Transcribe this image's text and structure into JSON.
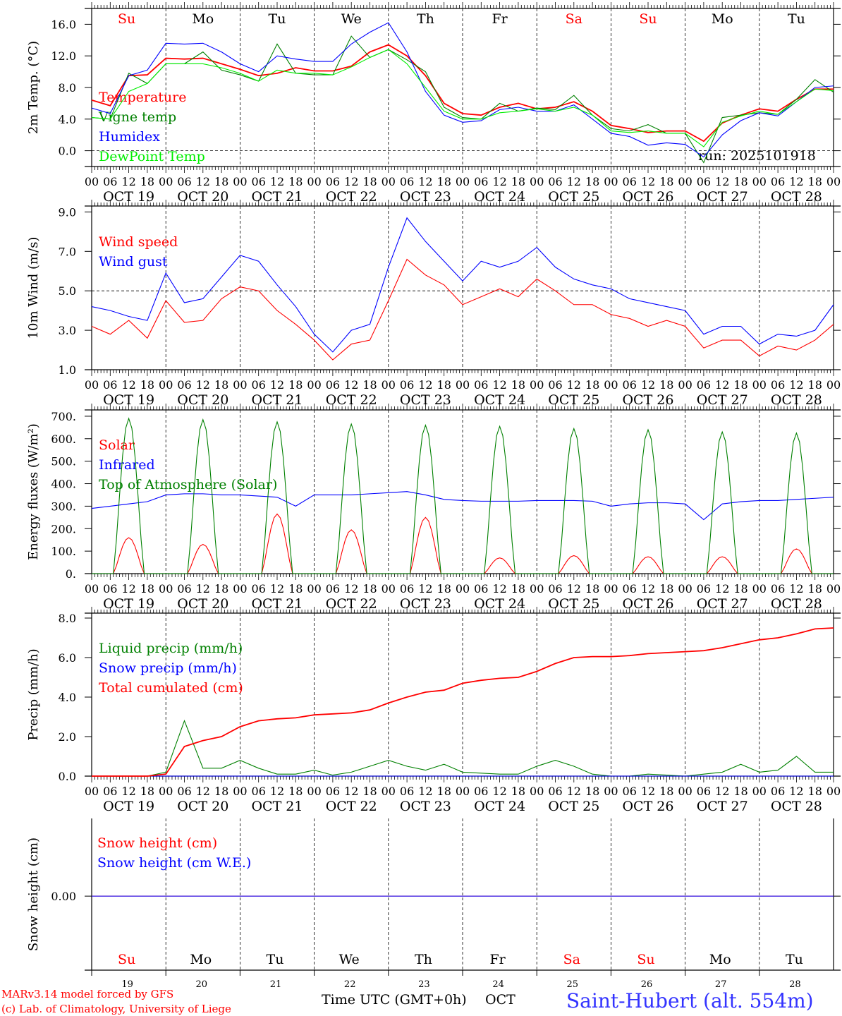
{
  "chart_data": [
    {
      "type": "line",
      "id": "temp",
      "ylabel": "2m Temp. (°C)",
      "ylim": [
        -2,
        18
      ],
      "yticks": [
        "16.0",
        "12.0",
        "8.0",
        "4.0",
        "0.0"
      ],
      "ytick_values": [
        16,
        12,
        8,
        4,
        0
      ],
      "ref_line": 0,
      "x_step_hours": 6,
      "annotation": "run: 2025101918",
      "series": [
        {
          "name": "Temperature",
          "color": "#ff0000",
          "values": [
            6.4,
            5.7,
            9.5,
            9.6,
            11.7,
            11.6,
            11.7,
            11.0,
            10.3,
            9.5,
            9.8,
            10.5,
            10.1,
            10.1,
            10.7,
            12.5,
            13.4,
            12.0,
            9.5,
            6.0,
            4.7,
            4.5,
            5.5,
            6.0,
            5.3,
            5.5,
            6.2,
            5.0,
            3.2,
            2.8,
            2.3,
            2.5,
            2.5,
            1.2,
            3.5,
            4.5,
            5.3,
            5.0,
            6.5,
            7.8,
            7.8
          ]
        },
        {
          "name": "Vigne temp",
          "color": "#008000",
          "values": [
            4.2,
            4.0,
            9.8,
            8.5,
            11.0,
            11.0,
            12.5,
            10.2,
            9.6,
            8.8,
            13.5,
            9.8,
            9.6,
            9.6,
            14.5,
            11.8,
            12.8,
            11.5,
            10.0,
            5.5,
            4.2,
            4.0,
            6.0,
            5.0,
            5.4,
            5.2,
            7.0,
            4.5,
            2.8,
            2.5,
            3.3,
            2.2,
            2.2,
            -1.5,
            4.2,
            4.5,
            4.8,
            4.6,
            6.5,
            9.0,
            7.4
          ]
        },
        {
          "name": "Humidex",
          "color": "#0000ff",
          "values": [
            5.4,
            4.7,
            9.5,
            10.2,
            13.6,
            13.5,
            13.6,
            12.5,
            11.0,
            10.0,
            12.0,
            11.6,
            11.3,
            11.3,
            13.5,
            15.0,
            16.2,
            12.5,
            7.5,
            4.5,
            3.6,
            3.8,
            5.2,
            5.5,
            5.0,
            5.0,
            5.8,
            4.0,
            2.2,
            1.8,
            0.7,
            1.0,
            0.8,
            -0.8,
            2.0,
            3.8,
            4.8,
            4.4,
            6.2,
            8.0,
            8.2
          ]
        },
        {
          "name": "DewPoint Temp",
          "color": "#00ee00",
          "values": [
            4.2,
            4.0,
            7.5,
            8.5,
            11.0,
            11.0,
            11.0,
            10.5,
            9.8,
            8.8,
            10.2,
            9.8,
            9.8,
            9.6,
            10.6,
            11.8,
            12.8,
            11.0,
            8.0,
            5.0,
            4.0,
            4.0,
            4.8,
            5.0,
            5.3,
            5.0,
            5.5,
            4.5,
            2.5,
            2.3,
            2.5,
            2.2,
            2.2,
            0.5,
            3.6,
            4.4,
            5.0,
            4.6,
            6.2,
            7.8,
            7.6
          ]
        }
      ]
    },
    {
      "type": "line",
      "id": "wind",
      "ylabel": "10m Wind (m/s)",
      "ylim": [
        1,
        9.3
      ],
      "yticks": [
        "9.0",
        "7.0",
        "5.0",
        "3.0",
        "1.0"
      ],
      "ytick_values": [
        9,
        7,
        5,
        3,
        1
      ],
      "ref_line": 5,
      "x_step_hours": 6,
      "series": [
        {
          "name": "Wind speed",
          "color": "#ff0000",
          "values": [
            3.2,
            2.8,
            3.5,
            2.6,
            4.5,
            3.4,
            3.5,
            4.6,
            5.2,
            5.0,
            4.0,
            3.3,
            2.5,
            1.5,
            2.3,
            2.5,
            4.5,
            6.6,
            5.8,
            5.3,
            4.3,
            4.7,
            5.1,
            4.7,
            5.6,
            5.0,
            4.3,
            4.3,
            3.8,
            3.6,
            3.2,
            3.5,
            3.2,
            2.1,
            2.5,
            2.5,
            1.7,
            2.2,
            2.0,
            2.5,
            3.3
          ]
        },
        {
          "name": "Wind gust",
          "color": "#0000ff",
          "values": [
            4.2,
            4.0,
            3.7,
            3.5,
            5.9,
            4.4,
            4.6,
            5.7,
            6.8,
            6.5,
            5.3,
            4.2,
            2.8,
            1.9,
            3.0,
            3.3,
            6.2,
            8.7,
            7.5,
            6.5,
            5.5,
            6.5,
            6.2,
            6.5,
            7.2,
            6.2,
            5.6,
            5.3,
            5.1,
            4.6,
            4.4,
            4.2,
            4.0,
            2.8,
            3.2,
            3.2,
            2.3,
            2.8,
            2.7,
            3.0,
            4.3
          ]
        }
      ]
    },
    {
      "type": "line",
      "id": "energy",
      "ylabel": "Energy fluxes (W/m²)",
      "ylim": [
        0,
        728
      ],
      "yticks": [
        "700.",
        "600.",
        "500.",
        "400.",
        "300.",
        "200.",
        "100.",
        "0."
      ],
      "ytick_values": [
        700,
        600,
        500,
        400,
        300,
        200,
        100,
        0
      ],
      "x_step_hours": 6,
      "daylight_hours": [
        7,
        17
      ],
      "series": [
        {
          "name": "Solar",
          "color": "#ff0000",
          "daily_peak": [
            160,
            130,
            265,
            195,
            250,
            70,
            80,
            75,
            75,
            110
          ]
        },
        {
          "name": "Infrared",
          "color": "#0000ff",
          "values": [
            290,
            300,
            310,
            320,
            350,
            355,
            355,
            350,
            350,
            345,
            340,
            300,
            350,
            350,
            350,
            355,
            360,
            365,
            350,
            330,
            325,
            322,
            322,
            322,
            325,
            325,
            325,
            322,
            300,
            310,
            315,
            315,
            310,
            240,
            310,
            320,
            325,
            325,
            330,
            335,
            340
          ]
        },
        {
          "name": "Top of Atmosphere (Solar)",
          "color": "#008000",
          "daily_peak": [
            690,
            685,
            675,
            665,
            660,
            655,
            645,
            640,
            630,
            625
          ]
        }
      ]
    },
    {
      "type": "line",
      "id": "precip",
      "ylabel": "Precip (mm/h)",
      "ylim": [
        0,
        8.25
      ],
      "yticks": [
        "8.0",
        "6.0",
        "4.0",
        "2.0",
        "0.0"
      ],
      "ytick_values": [
        8,
        6,
        4,
        2,
        0
      ],
      "x_step_hours": 6,
      "series": [
        {
          "name": "Liquid precip (mm/h)",
          "color": "#008000",
          "values": [
            0,
            0,
            0,
            0,
            0.2,
            2.8,
            0.4,
            0.4,
            0.8,
            0.4,
            0.1,
            0.1,
            0.3,
            0.05,
            0.2,
            0.5,
            0.8,
            0.5,
            0.3,
            0.6,
            0.2,
            0.15,
            0.1,
            0.1,
            0.5,
            0.8,
            0.5,
            0.1,
            0,
            0,
            0.1,
            0.05,
            0,
            0.1,
            0.2,
            0.6,
            0.2,
            0.3,
            1.0,
            0.2,
            0.2
          ]
        },
        {
          "name": "Snow precip (mm/h)",
          "color": "#0000ff",
          "values": [
            0,
            0,
            0,
            0,
            0,
            0,
            0,
            0,
            0,
            0,
            0,
            0,
            0,
            0,
            0,
            0,
            0,
            0,
            0,
            0,
            0,
            0,
            0,
            0,
            0,
            0,
            0,
            0,
            0,
            0,
            0,
            0,
            0,
            0,
            0,
            0,
            0,
            0,
            0,
            0,
            0
          ]
        },
        {
          "name": "Total cumulated (cm)",
          "color": "#ff0000",
          "values": [
            0,
            0,
            0,
            0,
            0.1,
            1.5,
            1.8,
            2.0,
            2.5,
            2.8,
            2.9,
            2.95,
            3.1,
            3.15,
            3.2,
            3.35,
            3.7,
            4.0,
            4.25,
            4.35,
            4.7,
            4.85,
            4.95,
            5.0,
            5.3,
            5.7,
            6.0,
            6.05,
            6.05,
            6.1,
            6.2,
            6.25,
            6.3,
            6.35,
            6.5,
            6.7,
            6.9,
            7.0,
            7.2,
            7.45,
            7.5
          ]
        }
      ]
    },
    {
      "type": "line",
      "id": "snow",
      "ylabel": "Snow height (cm)",
      "ylim": [
        -1,
        1.05
      ],
      "yticks": [
        "0.00"
      ],
      "ytick_values": [
        0
      ],
      "x_step_hours": 6,
      "series": [
        {
          "name": "Snow height (cm)",
          "color": "#ff0000",
          "values": [
            0,
            0,
            0,
            0,
            0,
            0,
            0,
            0,
            0,
            0,
            0,
            0,
            0,
            0,
            0,
            0,
            0,
            0,
            0,
            0,
            0,
            0,
            0,
            0,
            0,
            0,
            0,
            0,
            0,
            0,
            0,
            0,
            0,
            0,
            0,
            0,
            0,
            0,
            0,
            0,
            0
          ]
        },
        {
          "name": "Snow height (cm W.E.)",
          "color": "#0000ff",
          "values": [
            0,
            0,
            0,
            0,
            0,
            0,
            0,
            0,
            0,
            0,
            0,
            0,
            0,
            0,
            0,
            0,
            0,
            0,
            0,
            0,
            0,
            0,
            0,
            0,
            0,
            0,
            0,
            0,
            0,
            0,
            0,
            0,
            0,
            0,
            0,
            0,
            0,
            0,
            0,
            0,
            0
          ]
        }
      ]
    }
  ],
  "x_axis": {
    "hour_labels": [
      "00",
      "06",
      "12",
      "18"
    ],
    "date_labels": [
      "OCT 19",
      "OCT 20",
      "OCT 21",
      "OCT 22",
      "OCT 23",
      "OCT 24",
      "OCT 25",
      "OCT 26",
      "OCT 27",
      "OCT 28"
    ],
    "day_names": [
      "Su",
      "Mo",
      "Tu",
      "We",
      "Th",
      "Fr",
      "Sa",
      "Su",
      "Mo",
      "Tu"
    ],
    "weekend": [
      true,
      false,
      false,
      false,
      false,
      false,
      true,
      true,
      false,
      false
    ],
    "day_numbers": [
      "19",
      "20",
      "21",
      "22",
      "23",
      "24",
      "25",
      "26",
      "27",
      "28"
    ],
    "month": "OCT",
    "title": "Time UTC (GMT+0h)"
  },
  "footer": {
    "model": "MARv3.14 model forced by GFS",
    "credit": "(c) Lab. of Climatology, University of Liege",
    "station": "Saint-Hubert (alt. 554m)"
  },
  "colors": {
    "weekend": "#ff0000",
    "weekday": "#000000",
    "station": "#3333ff",
    "footer": "#ff0000"
  }
}
